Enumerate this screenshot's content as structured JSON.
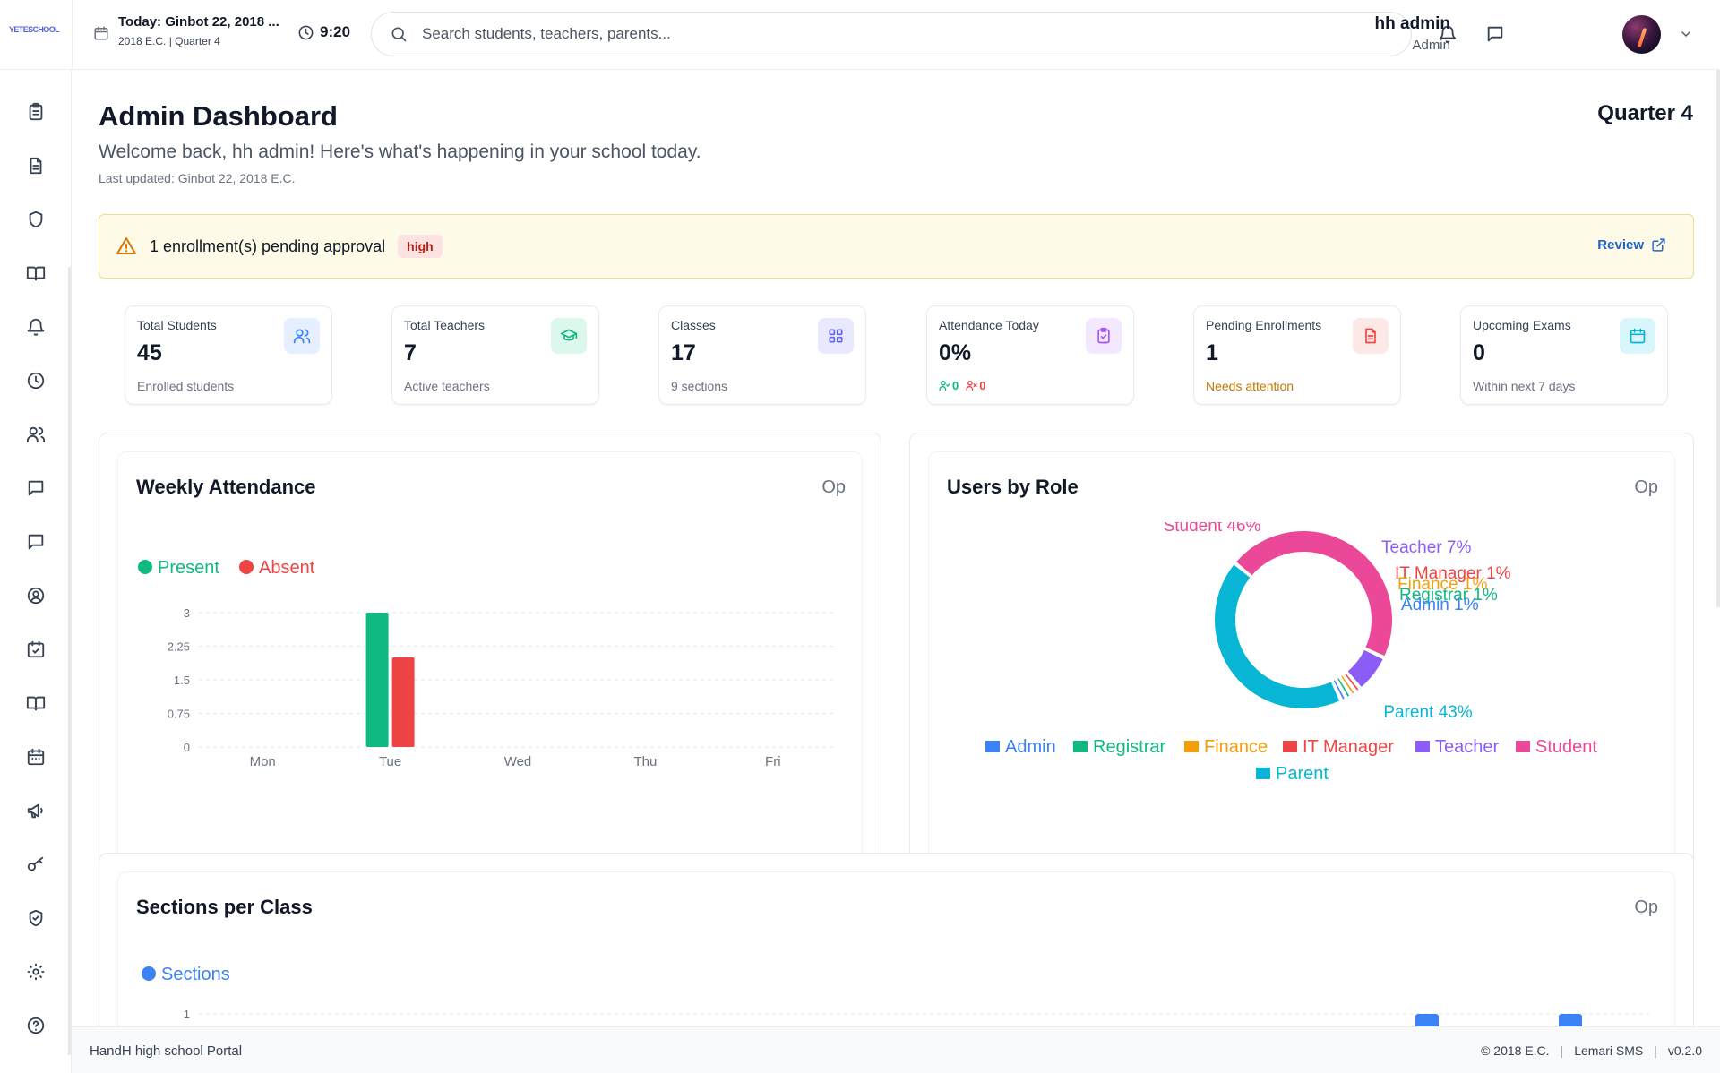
{
  "app": {
    "logo": "YETESCHOOL"
  },
  "topbar": {
    "date_title": "Today: Ginbot 22, 2018 ...",
    "date_sub": "2018 E.C. | Quarter 4",
    "time": "9:20",
    "search_placeholder": "Search students, teachers, parents...",
    "user_name": "hh admin",
    "user_role": "Admin"
  },
  "sidebar": {
    "items": [
      "clipboard-icon",
      "document-icon",
      "shield-icon",
      "book-open-icon",
      "bell-icon",
      "clock-icon",
      "users-icon",
      "message-icon",
      "chat-icon",
      "user-circle-icon",
      "calendar-check-icon",
      "book-icon",
      "calendar-icon",
      "megaphone-icon",
      "key-icon",
      "shield-check-icon",
      "gear-icon",
      "help-icon"
    ]
  },
  "page": {
    "title": "Admin Dashboard",
    "subtitle": "Welcome back, hh admin! Here's what's happening in your school today.",
    "updated": "Last updated: Ginbot 22, 2018 E.C.",
    "quarter": "Quarter 4"
  },
  "alert": {
    "text": "1 enrollment(s) pending approval",
    "badge": "high",
    "action": "Review"
  },
  "stats": [
    {
      "label": "Total Students",
      "value": "45",
      "note": "Enrolled students",
      "accent": "#3b82f6",
      "bg": "#e6efff"
    },
    {
      "label": "Total Teachers",
      "value": "7",
      "note": "Active teachers",
      "accent": "#10b981",
      "bg": "#dcf7ec"
    },
    {
      "label": "Classes",
      "value": "17",
      "note": "9 sections",
      "accent": "#6366f1",
      "bg": "#e8e9ff"
    },
    {
      "label": "Attendance Today",
      "value": "0%",
      "present": "0",
      "absent": "0",
      "accent": "#a855f7",
      "bg": "#f3e8ff"
    },
    {
      "label": "Pending Enrollments",
      "value": "1",
      "note": "Needs attention",
      "accent": "#ef4444",
      "bg": "#fde8e8"
    },
    {
      "label": "Upcoming Exams",
      "value": "0",
      "note": "Within next 7 days",
      "accent": "#06b6d4",
      "bg": "#d9f6fb"
    }
  ],
  "cards": {
    "weekly": {
      "title": "Weekly Attendance",
      "op": "Op"
    },
    "roles": {
      "title": "Users by Role",
      "op": "Op"
    },
    "sections": {
      "title": "Sections per Class",
      "op": "Op"
    }
  },
  "chart_data": [
    {
      "type": "bar",
      "title": "Weekly Attendance",
      "categories": [
        "Mon",
        "Tue",
        "Wed",
        "Thu",
        "Fri"
      ],
      "series": [
        {
          "name": "Present",
          "values": [
            0,
            3,
            0,
            0,
            0
          ],
          "color": "#10b981"
        },
        {
          "name": "Absent",
          "values": [
            0,
            2,
            0,
            0,
            0
          ],
          "color": "#ef4444"
        }
      ],
      "yticks": [
        "0",
        "0.75",
        "1.5",
        "2.25",
        "3"
      ],
      "ylim": [
        0,
        3
      ],
      "legend": "top-left",
      "grid": true
    },
    {
      "type": "pie",
      "title": "Users by Role",
      "donut": true,
      "series": [
        {
          "name": "Admin",
          "value": 1,
          "color": "#3b82f6",
          "label": "Admin 1%"
        },
        {
          "name": "Registrar",
          "value": 1,
          "color": "#10b981",
          "label": "Registrar 1%"
        },
        {
          "name": "Finance",
          "value": 1,
          "color": "#f59e0b",
          "label": "Finance 1%"
        },
        {
          "name": "IT Manager",
          "value": 1,
          "color": "#ef4444",
          "label": "IT Manager 1%"
        },
        {
          "name": "Teacher",
          "value": 7,
          "color": "#8b5cf6",
          "label": "Teacher 7%"
        },
        {
          "name": "Student",
          "value": 46,
          "color": "#ec4899",
          "label": "Student 46%"
        },
        {
          "name": "Parent",
          "value": 43,
          "color": "#06b6d4",
          "label": "Parent 43%"
        }
      ],
      "legend": "bottom"
    },
    {
      "type": "bar",
      "title": "Sections per Class",
      "series": [
        {
          "name": "Sections",
          "color": "#3b82f6"
        }
      ],
      "yticks": [
        "1"
      ],
      "legend": "top-left",
      "grid": true
    }
  ],
  "footer": {
    "left": "HandH high school Portal",
    "copyright": "© 2018 E.C.",
    "sep": "|",
    "vendor": "Lemari SMS",
    "version": "v0.2.0"
  }
}
